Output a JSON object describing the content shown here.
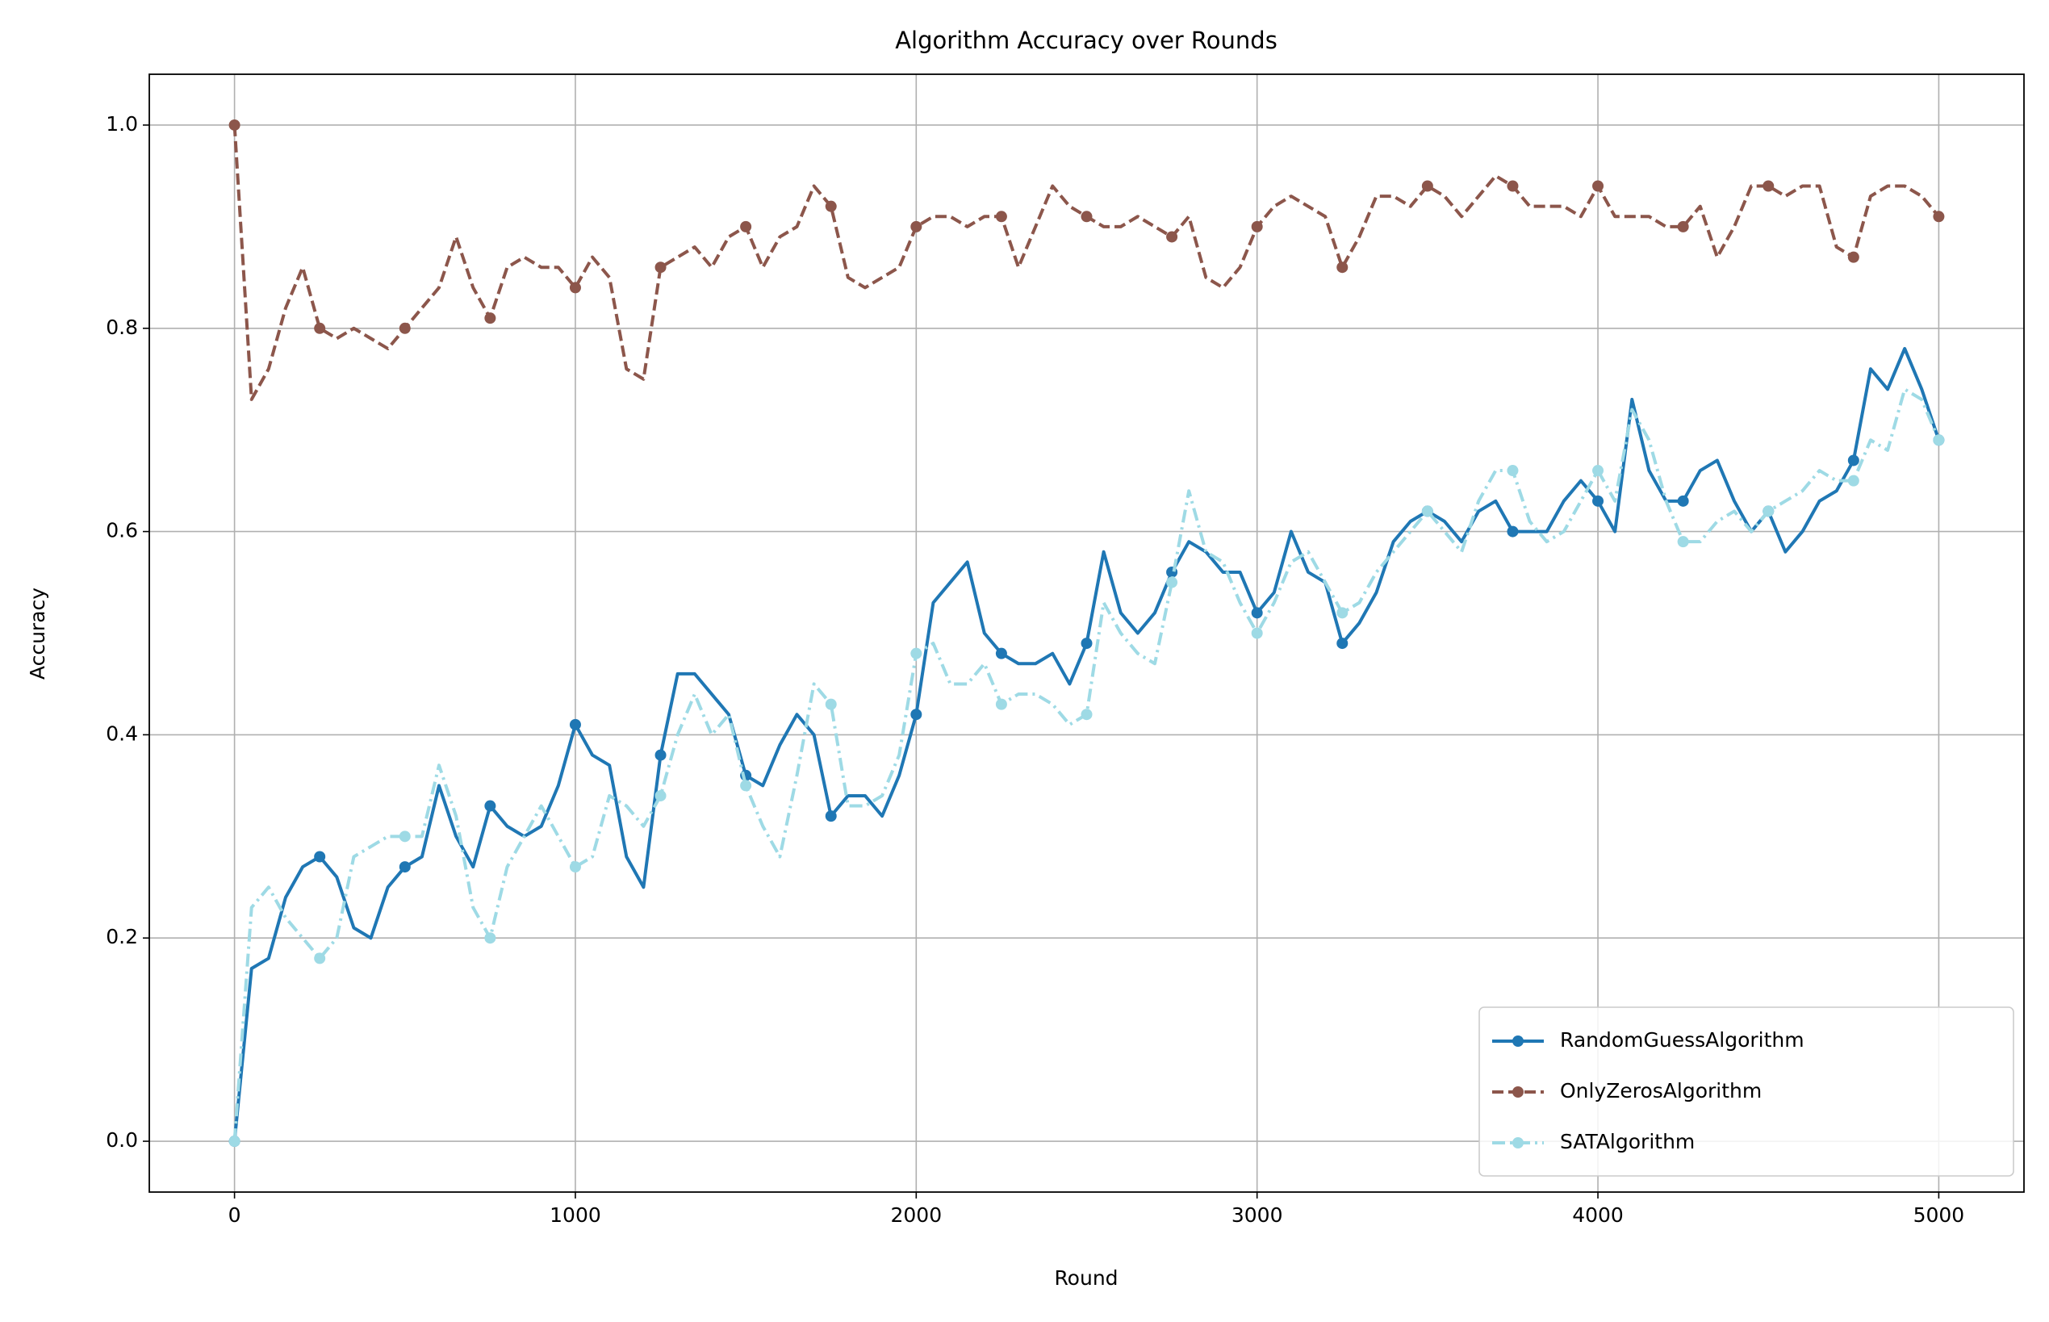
{
  "chart_data": {
    "type": "line",
    "title": "Algorithm Accuracy over Rounds",
    "xlabel": "Round",
    "ylabel": "Accuracy",
    "x": [
      0,
      50,
      100,
      150,
      200,
      250,
      300,
      350,
      400,
      450,
      500,
      550,
      600,
      650,
      700,
      750,
      800,
      850,
      900,
      950,
      1000,
      1050,
      1100,
      1150,
      1200,
      1250,
      1300,
      1350,
      1400,
      1450,
      1500,
      1550,
      1600,
      1650,
      1700,
      1750,
      1800,
      1850,
      1900,
      1950,
      2000,
      2050,
      2100,
      2150,
      2200,
      2250,
      2300,
      2350,
      2400,
      2450,
      2500,
      2550,
      2600,
      2650,
      2700,
      2750,
      2800,
      2850,
      2900,
      2950,
      3000,
      3050,
      3100,
      3150,
      3200,
      3250,
      3300,
      3350,
      3400,
      3450,
      3500,
      3550,
      3600,
      3650,
      3700,
      3750,
      3800,
      3850,
      3900,
      3950,
      4000,
      4050,
      4100,
      4150,
      4200,
      4250,
      4300,
      4350,
      4400,
      4450,
      4500,
      4550,
      4600,
      4650,
      4700,
      4750,
      4800,
      4850,
      4900,
      4950,
      5000
    ],
    "series": [
      {
        "name": "RandomGuessAlgorithm",
        "color": "#1f77b4",
        "linestyle": "solid",
        "values": [
          0.0,
          0.17,
          0.18,
          0.24,
          0.27,
          0.28,
          0.26,
          0.21,
          0.2,
          0.25,
          0.27,
          0.28,
          0.35,
          0.3,
          0.27,
          0.33,
          0.31,
          0.3,
          0.31,
          0.35,
          0.41,
          0.38,
          0.37,
          0.28,
          0.25,
          0.38,
          0.46,
          0.46,
          0.44,
          0.42,
          0.36,
          0.35,
          0.39,
          0.42,
          0.4,
          0.32,
          0.34,
          0.34,
          0.32,
          0.36,
          0.42,
          0.53,
          0.55,
          0.57,
          0.5,
          0.48,
          0.47,
          0.47,
          0.48,
          0.45,
          0.49,
          0.58,
          0.52,
          0.5,
          0.52,
          0.56,
          0.59,
          0.58,
          0.56,
          0.56,
          0.52,
          0.54,
          0.6,
          0.56,
          0.55,
          0.49,
          0.51,
          0.54,
          0.59,
          0.61,
          0.62,
          0.61,
          0.59,
          0.62,
          0.63,
          0.6,
          0.6,
          0.6,
          0.63,
          0.65,
          0.63,
          0.6,
          0.73,
          0.66,
          0.63,
          0.63,
          0.66,
          0.67,
          0.63,
          0.6,
          0.62,
          0.58,
          0.6,
          0.63,
          0.64,
          0.67,
          0.76,
          0.74,
          0.78,
          0.74,
          0.69
        ]
      },
      {
        "name": "OnlyZerosAlgorithm",
        "color": "#8c564b",
        "linestyle": "dashed",
        "values": [
          1.0,
          0.73,
          0.76,
          0.82,
          0.86,
          0.8,
          0.79,
          0.8,
          0.79,
          0.78,
          0.8,
          0.82,
          0.84,
          0.89,
          0.84,
          0.81,
          0.86,
          0.87,
          0.86,
          0.86,
          0.84,
          0.87,
          0.85,
          0.76,
          0.75,
          0.86,
          0.87,
          0.88,
          0.86,
          0.89,
          0.9,
          0.86,
          0.89,
          0.9,
          0.94,
          0.92,
          0.85,
          0.84,
          0.85,
          0.86,
          0.9,
          0.91,
          0.91,
          0.9,
          0.91,
          0.91,
          0.86,
          0.9,
          0.94,
          0.92,
          0.91,
          0.9,
          0.9,
          0.91,
          0.9,
          0.89,
          0.91,
          0.85,
          0.84,
          0.86,
          0.9,
          0.92,
          0.93,
          0.92,
          0.91,
          0.86,
          0.89,
          0.93,
          0.93,
          0.92,
          0.94,
          0.93,
          0.91,
          0.93,
          0.95,
          0.94,
          0.92,
          0.92,
          0.92,
          0.91,
          0.94,
          0.91,
          0.91,
          0.91,
          0.9,
          0.9,
          0.92,
          0.87,
          0.9,
          0.94,
          0.94,
          0.93,
          0.94,
          0.94,
          0.88,
          0.87,
          0.93,
          0.94,
          0.94,
          0.93,
          0.91
        ]
      },
      {
        "name": "SATAlgorithm",
        "color": "#9edae5",
        "linestyle": "dashdot",
        "values": [
          0.0,
          0.23,
          0.25,
          0.22,
          0.2,
          0.18,
          0.2,
          0.28,
          0.29,
          0.3,
          0.3,
          0.3,
          0.37,
          0.32,
          0.23,
          0.2,
          0.27,
          0.3,
          0.33,
          0.3,
          0.27,
          0.28,
          0.34,
          0.33,
          0.31,
          0.34,
          0.4,
          0.44,
          0.4,
          0.42,
          0.35,
          0.31,
          0.28,
          0.36,
          0.45,
          0.43,
          0.33,
          0.33,
          0.34,
          0.38,
          0.48,
          0.49,
          0.45,
          0.45,
          0.47,
          0.43,
          0.44,
          0.44,
          0.43,
          0.41,
          0.42,
          0.53,
          0.5,
          0.48,
          0.47,
          0.55,
          0.64,
          0.58,
          0.57,
          0.53,
          0.5,
          0.53,
          0.57,
          0.58,
          0.55,
          0.52,
          0.53,
          0.56,
          0.58,
          0.6,
          0.62,
          0.6,
          0.58,
          0.63,
          0.66,
          0.66,
          0.61,
          0.59,
          0.6,
          0.63,
          0.66,
          0.63,
          0.72,
          0.69,
          0.63,
          0.59,
          0.59,
          0.61,
          0.62,
          0.6,
          0.62,
          0.63,
          0.64,
          0.66,
          0.65,
          0.65,
          0.69,
          0.68,
          0.74,
          0.73,
          0.69
        ]
      }
    ],
    "markevery": 5,
    "xlim": [
      -250,
      5250
    ],
    "xticks": [
      0,
      1000,
      2000,
      3000,
      4000,
      5000
    ],
    "ylim": [
      -0.05,
      1.05
    ],
    "yticks": [
      {
        "value": 0,
        "label": "0.0"
      },
      0.2,
      0.4,
      0.6,
      0.8,
      {
        "value": 1,
        "label": "1.0"
      }
    ],
    "grid": true,
    "legend": "lower right"
  }
}
